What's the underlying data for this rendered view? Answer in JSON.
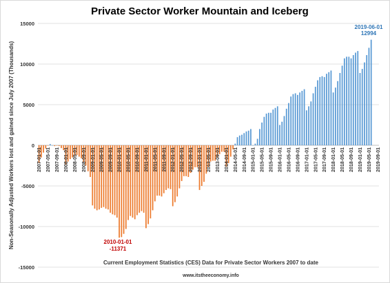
{
  "chart_data": {
    "type": "bar",
    "title": "Private Sector Worker Mountain and Iceberg",
    "ylabel": "Non-Seasonally Adjusted Workers lost and gained since July 2007 (Thousands)",
    "xlabel": "Current Employment Statistics (CES) Data for Private Sector Workers 2007 to date",
    "source": "www.itstheeconomy.info",
    "ylim": [
      -15000,
      15000
    ],
    "yticks": [
      15000,
      10000,
      5000,
      0,
      -5000,
      -10000,
      -15000
    ],
    "xticks": [
      "2007-01-01",
      "2007-05-01",
      "2007-09-01",
      "2008-01-01",
      "2008-05-01",
      "2008-09-01",
      "2009-01-01",
      "2009-05-01",
      "2009-09-01",
      "2010-01-01",
      "2010-05-01",
      "2010-09-01",
      "2011-01-01",
      "2011-05-01",
      "2011-09-01",
      "2012-01-01",
      "2012-05-01",
      "2012-09-01",
      "2013-01-01",
      "2013-05-01",
      "2013-09-01",
      "2014-01-01",
      "2014-05-01",
      "2014-09-01",
      "2015-01-01",
      "2015-05-01",
      "2015-09-01",
      "2016-01-01",
      "2016-05-01",
      "2016-09-01",
      "2017-01-01",
      "2017-05-01",
      "2017-09-01",
      "2018-01-01",
      "2018-05-01",
      "2018-09-01",
      "2019-01-01",
      "2019-05-01",
      "2019-09-01"
    ],
    "grid": true,
    "legend": "none",
    "start": "2007-01-01",
    "end": "2019-09-01",
    "negative_color": "#ed7d31",
    "positive_color": "#5b9bd5",
    "values": [
      -2200,
      -1500,
      -900,
      -400,
      -50,
      150,
      0,
      -100,
      -50,
      -100,
      -350,
      -600,
      -2400,
      -2000,
      -1700,
      -1500,
      -1300,
      -1200,
      -1400,
      -1600,
      -2100,
      -2500,
      -3200,
      -3900,
      -7400,
      -7800,
      -8000,
      -7900,
      -7700,
      -7600,
      -7800,
      -7900,
      -8300,
      -8500,
      -8600,
      -8900,
      -11371,
      -11300,
      -10900,
      -10300,
      -9200,
      -8700,
      -8900,
      -9100,
      -8600,
      -8300,
      -8100,
      -8300,
      -10200,
      -9700,
      -9000,
      -8000,
      -6900,
      -6200,
      -6200,
      -6300,
      -5900,
      -5500,
      -5300,
      -5400,
      -7500,
      -7000,
      -6300,
      -5300,
      -4400,
      -3800,
      -3800,
      -3900,
      -3400,
      -3000,
      -2700,
      -2700,
      -5500,
      -5000,
      -4500,
      -3500,
      -2700,
      -2000,
      -1900,
      -1900,
      -1500,
      -1100,
      -800,
      -800,
      -2600,
      -2200,
      -1400,
      -500,
      200,
      1000,
      1200,
      1300,
      1500,
      1700,
      1800,
      2000,
      0,
      200,
      800,
      2000,
      2800,
      3500,
      3900,
      4000,
      4000,
      4400,
      4600,
      4800,
      2500,
      2900,
      3600,
      4500,
      5200,
      6000,
      6300,
      6400,
      6200,
      6500,
      6700,
      6900,
      4300,
      4800,
      5400,
      6400,
      7200,
      8000,
      8400,
      8500,
      8400,
      8800,
      9000,
      9200,
      6500,
      7100,
      7900,
      8900,
      9800,
      10700,
      10900,
      10900,
      10700,
      11100,
      11400,
      11600,
      8900,
      9400,
      10200,
      11100,
      12000,
      12994
    ]
  },
  "annotations": [
    {
      "date": "2010-01-01",
      "value": "-11371",
      "color": "#c00000"
    },
    {
      "date": "2019-06-01",
      "value": "12994",
      "color": "#2e75b6"
    }
  ],
  "colors": {
    "grid": "#d9d9d9",
    "axis": "#bfbfbf"
  }
}
